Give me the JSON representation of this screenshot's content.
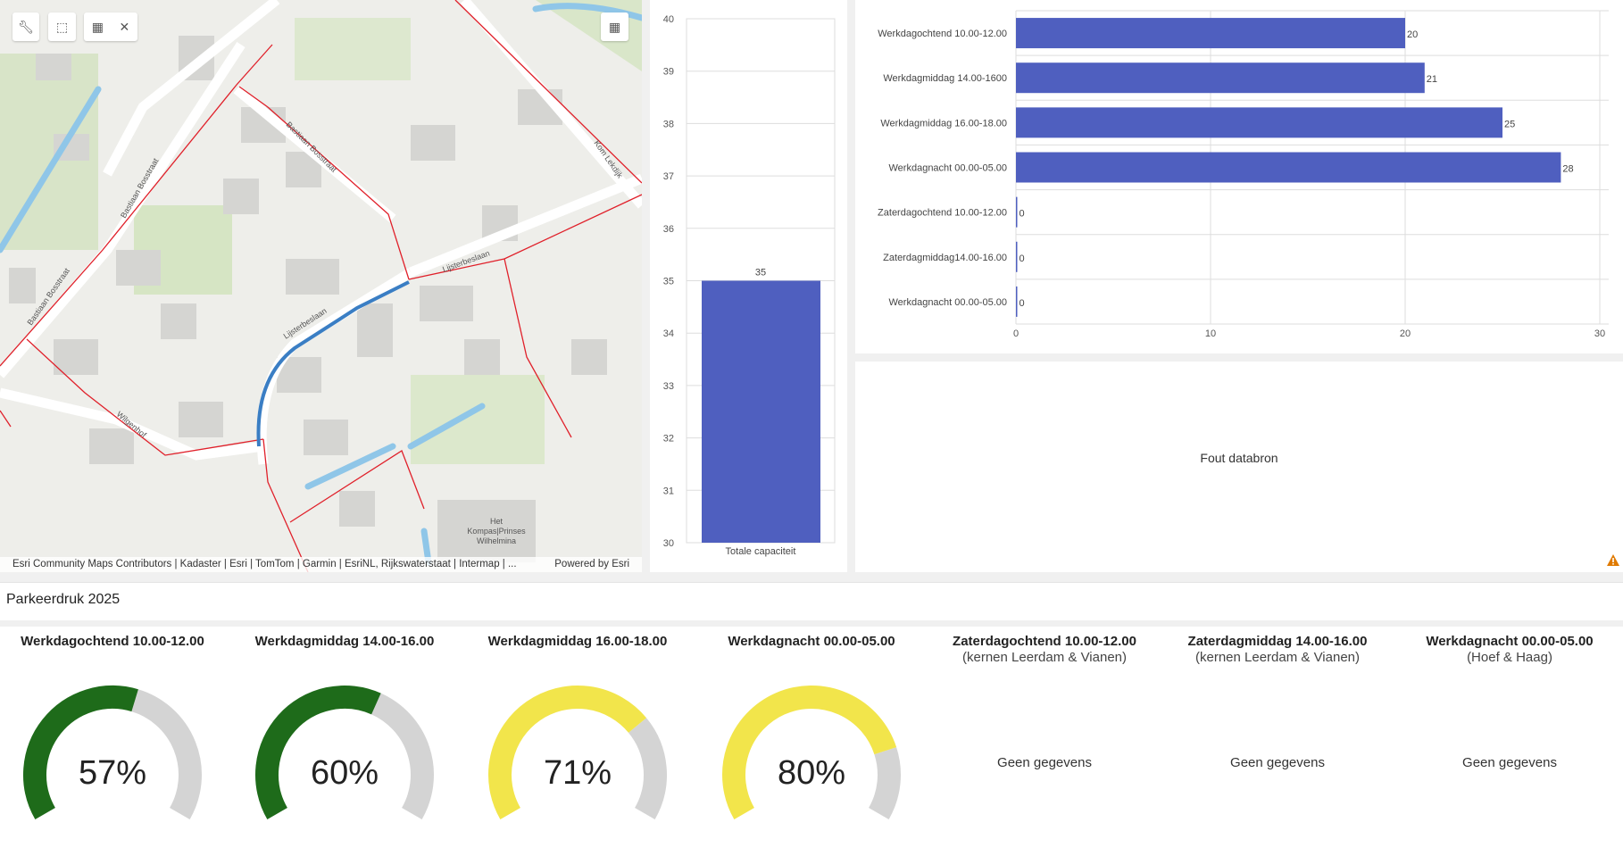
{
  "map": {
    "toolbar": {
      "tools_icon": "wrench-icon",
      "select_icon": "lasso-select-icon",
      "rect_select_icon": "rectangle-select-icon",
      "clear_icon": "close-icon",
      "layout_icon": "grid-icon"
    },
    "labels": [
      "Bastiaan Bosstraat",
      "Bastiaan Bosstraat",
      "Bastiaan Bosstraat",
      "Lijsterbeslaan",
      "Lijsterbeslaan",
      "Kom Lekdijk",
      "Wilgenhof",
      "Het",
      "Kompas|Prinses",
      "Wilhelmina"
    ],
    "attribution": "Esri Community Maps Contributors | Kadaster | Esri | TomTom | Garmin | EsriNL, Rijkswaterstaat | Intermap | ...",
    "powered_by": "Powered by Esri"
  },
  "chart_data": [
    {
      "type": "bar",
      "categories": [
        "Totale capaciteit"
      ],
      "values": [
        35
      ],
      "ylim": [
        30,
        40
      ],
      "yticks": [
        "30",
        "31",
        "32",
        "33",
        "34",
        "35",
        "36",
        "37",
        "38",
        "39",
        "40"
      ],
      "value_labels": [
        "35"
      ],
      "color": "#4f5fbf"
    },
    {
      "type": "bar",
      "orientation": "horizontal",
      "categories": [
        "Werkdagochtend 10.00-12.00",
        "Werkdagmiddag 14.00-1600",
        "Werkdagmiddag 16.00-18.00",
        "Werkdagnacht 00.00-05.00",
        "Zaterdagochtend 10.00-12.00",
        "Zaterdagmiddag14.00-16.00",
        "Werkdagnacht 00.00-05.00"
      ],
      "values": [
        20,
        21,
        25,
        28,
        0,
        0,
        0
      ],
      "value_labels": [
        "20",
        "21",
        "25",
        "28",
        "0",
        "0",
        "0"
      ],
      "xlim": [
        0,
        30
      ],
      "xticks": [
        "0",
        "10",
        "20",
        "30"
      ],
      "color": "#4f5fbf"
    }
  ],
  "error_panel": {
    "message": "Fout databron",
    "icon": "warning-icon"
  },
  "section_title": "Parkeerdruk 2025",
  "gauges": [
    {
      "title": "Werkdagochtend 10.00-12.00",
      "subtitle": "",
      "value": 57,
      "label": "57%",
      "color": "#1e6b1a"
    },
    {
      "title": "Werkdagmiddag 14.00-16.00",
      "subtitle": "",
      "value": 60,
      "label": "60%",
      "color": "#1e6b1a"
    },
    {
      "title": "Werkdagmiddag 16.00-18.00",
      "subtitle": "",
      "value": 71,
      "label": "71%",
      "color": "#f2e54b"
    },
    {
      "title": "Werkdagnacht 00.00-05.00",
      "subtitle": "",
      "value": 80,
      "label": "80%",
      "color": "#f2e54b"
    },
    {
      "title": "Zaterdagochtend 10.00-12.00",
      "subtitle": "(kernen Leerdam & Vianen)",
      "label": "Geen gegevens"
    },
    {
      "title": "Zaterdagmiddag 14.00-16.00",
      "subtitle": "(kernen Leerdam & Vianen)",
      "label": "Geen gegevens"
    },
    {
      "title": "Werkdagnacht 00.00-05.00",
      "subtitle": "(Hoef & Haag)",
      "label": "Geen gegevens"
    }
  ]
}
